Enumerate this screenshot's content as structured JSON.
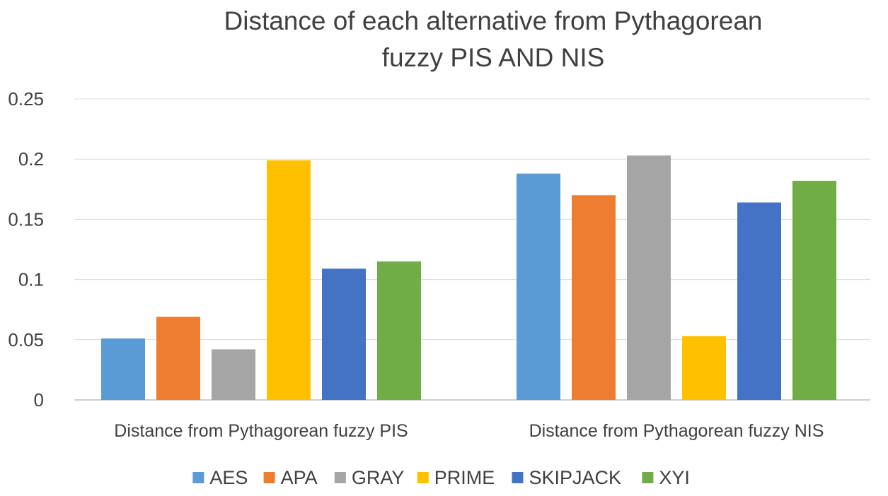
{
  "chart_data": {
    "type": "bar",
    "title_lines": [
      "Distance of each alternative from Pythagorean",
      "fuzzy PIS AND NIS"
    ],
    "categories": [
      "Distance from Pythagorean fuzzy PIS",
      "Distance from Pythagorean fuzzy NIS"
    ],
    "series": [
      {
        "name": "AES",
        "color": "#5B9BD5",
        "values": [
          0.051,
          0.188
        ]
      },
      {
        "name": "APA",
        "color": "#ED7D31",
        "values": [
          0.069,
          0.17
        ]
      },
      {
        "name": "GRAY",
        "color": "#A5A5A5",
        "values": [
          0.042,
          0.203
        ]
      },
      {
        "name": "PRIME",
        "color": "#FFC000",
        "values": [
          0.199,
          0.053
        ]
      },
      {
        "name": "SKIPJACK",
        "color": "#4472C4",
        "values": [
          0.109,
          0.164
        ]
      },
      {
        "name": "XYI",
        "color": "#70AD47",
        "values": [
          0.115,
          0.182
        ]
      }
    ],
    "yticks": [
      "0",
      "0.05",
      "0.1",
      "0.15",
      "0.2",
      "0.25"
    ],
    "ylim": [
      0,
      0.25
    ],
    "xlabel": "",
    "ylabel": "",
    "grid": true,
    "legend_position": "bottom"
  }
}
